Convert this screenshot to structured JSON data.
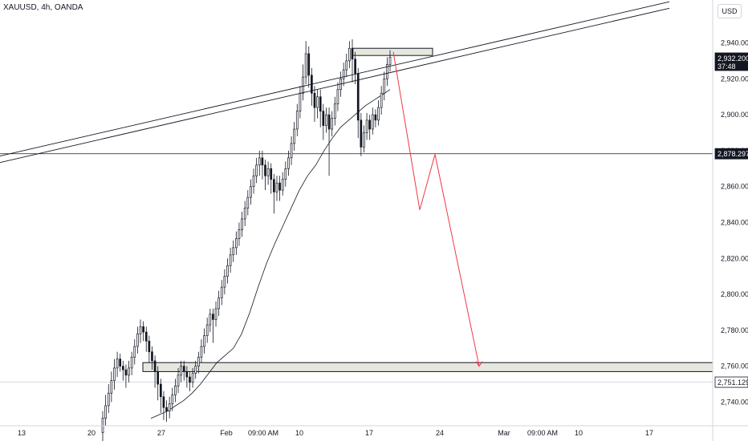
{
  "header": {
    "symbol": "XAUUSD, 4h, OANDA",
    "currency": "USD"
  },
  "price_tags": {
    "current_price": "2,932.200",
    "countdown": "37:48",
    "level_price": "2,878.297",
    "low_level_price": "2,751.129"
  },
  "colors": {
    "up": "#131722",
    "down": "#131722",
    "projection": "#f23645",
    "zone_fill": "#e6e7df",
    "ma": "#131722"
  },
  "chart_data": {
    "type": "candlestick",
    "symbol": "XAUUSD",
    "timeframe": "4h",
    "source": "OANDA",
    "y_ticks": [
      2740,
      2760,
      2780,
      2800,
      2820,
      2840,
      2860,
      2880,
      2900,
      2920,
      2940
    ],
    "y_tick_labels": [
      "2,740.000",
      "2,760.000",
      "2,780.000",
      "2,800.000",
      "2,820.000",
      "2,840.000",
      "2,860.000",
      "2,880.000",
      "2,900.000",
      "2,920.000",
      "2,940.000"
    ],
    "ylim": [
      2730,
      2963
    ],
    "x_ticks": [
      "13",
      "20",
      "27",
      "Feb",
      "09:00 AM",
      "10",
      "17",
      "24",
      "Mar",
      "09:00 AM",
      "10",
      "17"
    ],
    "current_price": 2932.2,
    "horizontal_levels": [
      2878.297,
      2751.129
    ],
    "zones": [
      {
        "name": "demand-zone",
        "top": 2762,
        "bottom": 2757
      },
      {
        "name": "supply-zone",
        "top": 2937,
        "bottom": 2933
      }
    ],
    "trend_channel": {
      "y_left": 2877,
      "y_right": 2962,
      "gap": 1.2
    },
    "projection_path": [
      2935,
      2847,
      2878,
      2760
    ],
    "moving_average": [
      2731,
      2733,
      2735,
      2738,
      2741,
      2745,
      2750,
      2756,
      2762,
      2766,
      2770,
      2778,
      2790,
      2804,
      2817,
      2828,
      2838,
      2848,
      2858,
      2866,
      2872,
      2880,
      2887,
      2893,
      2897,
      2901,
      2905,
      2908,
      2911,
      2914
    ],
    "candles": [
      [
        2723,
        2731,
        2718,
        2735
      ],
      [
        2731,
        2738,
        2727,
        2744
      ],
      [
        2738,
        2745,
        2734,
        2750
      ],
      [
        2745,
        2752,
        2740,
        2757
      ],
      [
        2752,
        2759,
        2747,
        2764
      ],
      [
        2759,
        2764,
        2754,
        2768
      ],
      [
        2764,
        2760,
        2757,
        2767
      ],
      [
        2760,
        2758,
        2752,
        2763
      ],
      [
        2758,
        2755,
        2748,
        2761
      ],
      [
        2755,
        2759,
        2751,
        2763
      ],
      [
        2759,
        2765,
        2755,
        2768
      ],
      [
        2765,
        2771,
        2761,
        2775
      ],
      [
        2771,
        2778,
        2767,
        2782
      ],
      [
        2778,
        2782,
        2773,
        2786
      ],
      [
        2782,
        2779,
        2774,
        2785
      ],
      [
        2779,
        2774,
        2768,
        2782
      ],
      [
        2774,
        2768,
        2762,
        2777
      ],
      [
        2768,
        2763,
        2758,
        2771
      ],
      [
        2763,
        2757,
        2748,
        2766
      ],
      [
        2757,
        2750,
        2741,
        2760
      ],
      [
        2750,
        2743,
        2734,
        2753
      ],
      [
        2743,
        2737,
        2730,
        2746
      ],
      [
        2737,
        2735,
        2729,
        2741
      ],
      [
        2735,
        2739,
        2731,
        2743
      ],
      [
        2739,
        2744,
        2735,
        2748
      ],
      [
        2744,
        2749,
        2740,
        2753
      ],
      [
        2749,
        2755,
        2745,
        2759
      ],
      [
        2755,
        2760,
        2751,
        2763
      ],
      [
        2760,
        2757,
        2752,
        2763
      ],
      [
        2757,
        2754,
        2748,
        2760
      ],
      [
        2754,
        2751,
        2746,
        2757
      ],
      [
        2751,
        2756,
        2748,
        2759
      ],
      [
        2756,
        2760,
        2753,
        2763
      ],
      [
        2760,
        2765,
        2756,
        2768
      ],
      [
        2765,
        2771,
        2762,
        2775
      ],
      [
        2771,
        2777,
        2767,
        2781
      ],
      [
        2777,
        2783,
        2773,
        2787
      ],
      [
        2783,
        2789,
        2779,
        2792
      ],
      [
        2789,
        2786,
        2773,
        2792
      ],
      [
        2786,
        2792,
        2782,
        2796
      ],
      [
        2792,
        2798,
        2788,
        2802
      ],
      [
        2798,
        2804,
        2794,
        2808
      ],
      [
        2804,
        2810,
        2800,
        2814
      ],
      [
        2810,
        2816,
        2806,
        2820
      ],
      [
        2816,
        2822,
        2812,
        2826
      ],
      [
        2822,
        2826,
        2818,
        2830
      ],
      [
        2826,
        2831,
        2822,
        2835
      ],
      [
        2831,
        2836,
        2827,
        2840
      ],
      [
        2836,
        2842,
        2832,
        2846
      ],
      [
        2842,
        2848,
        2838,
        2852
      ],
      [
        2848,
        2854,
        2844,
        2858
      ],
      [
        2854,
        2860,
        2850,
        2864
      ],
      [
        2860,
        2866,
        2856,
        2870
      ],
      [
        2866,
        2872,
        2862,
        2876
      ],
      [
        2872,
        2876,
        2866,
        2880
      ],
      [
        2876,
        2872,
        2864,
        2880
      ],
      [
        2872,
        2866,
        2858,
        2875
      ],
      [
        2866,
        2870,
        2861,
        2874
      ],
      [
        2870,
        2864,
        2856,
        2873
      ],
      [
        2864,
        2857,
        2845,
        2867
      ],
      [
        2857,
        2862,
        2852,
        2866
      ],
      [
        2862,
        2858,
        2852,
        2866
      ],
      [
        2858,
        2864,
        2855,
        2868
      ],
      [
        2864,
        2870,
        2860,
        2874
      ],
      [
        2870,
        2876,
        2866,
        2880
      ],
      [
        2876,
        2884,
        2872,
        2888
      ],
      [
        2884,
        2892,
        2880,
        2896
      ],
      [
        2892,
        2902,
        2888,
        2906
      ],
      [
        2902,
        2912,
        2898,
        2916
      ],
      [
        2912,
        2921,
        2908,
        2928
      ],
      [
        2921,
        2934,
        2917,
        2941
      ],
      [
        2934,
        2922,
        2915,
        2938
      ],
      [
        2922,
        2912,
        2905,
        2926
      ],
      [
        2912,
        2904,
        2896,
        2916
      ],
      [
        2904,
        2910,
        2898,
        2914
      ],
      [
        2910,
        2902,
        2893,
        2914
      ],
      [
        2902,
        2894,
        2886,
        2906
      ],
      [
        2894,
        2900,
        2890,
        2904
      ],
      [
        2900,
        2892,
        2866,
        2904
      ],
      [
        2892,
        2898,
        2888,
        2902
      ],
      [
        2898,
        2906,
        2894,
        2910
      ],
      [
        2906,
        2914,
        2902,
        2918
      ],
      [
        2914,
        2920,
        2910,
        2924
      ],
      [
        2920,
        2925,
        2916,
        2929
      ],
      [
        2925,
        2930,
        2921,
        2934
      ],
      [
        2930,
        2937,
        2926,
        2941
      ],
      [
        2937,
        2931,
        2918,
        2942
      ],
      [
        2931,
        2923,
        2917,
        2935
      ],
      [
        2923,
        2897,
        2887,
        2926
      ],
      [
        2897,
        2882,
        2877,
        2901
      ],
      [
        2882,
        2890,
        2879,
        2894
      ],
      [
        2890,
        2897,
        2886,
        2901
      ],
      [
        2897,
        2892,
        2886,
        2900
      ],
      [
        2892,
        2900,
        2889,
        2904
      ],
      [
        2900,
        2897,
        2893,
        2903
      ],
      [
        2897,
        2904,
        2894,
        2908
      ],
      [
        2904,
        2912,
        2900,
        2916
      ],
      [
        2912,
        2920,
        2908,
        2924
      ],
      [
        2920,
        2928,
        2916,
        2932
      ],
      [
        2928,
        2932,
        2924,
        2936
      ]
    ]
  }
}
